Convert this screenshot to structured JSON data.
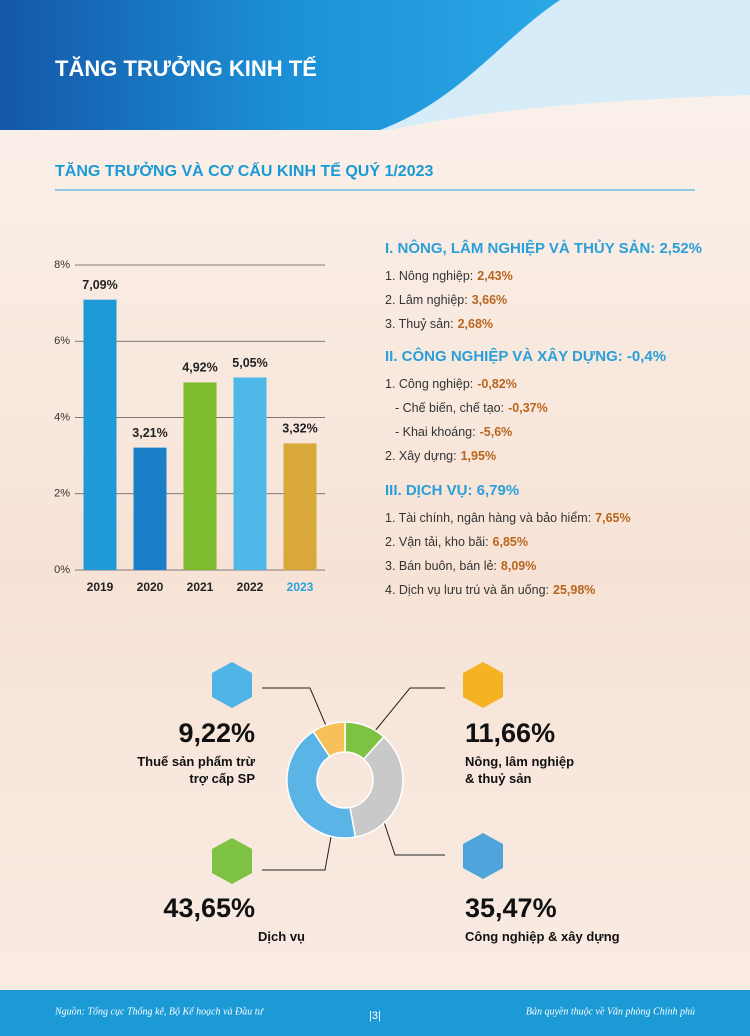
{
  "header": {
    "title": "TĂNG TRƯỞNG KINH TẾ"
  },
  "section_title": "TĂNG TRƯỞNG VÀ CƠ CẤU KINH TẾ QUÝ 1/2023",
  "chart_data": [
    {
      "type": "bar",
      "categories": [
        "2019",
        "2020",
        "2021",
        "2022",
        "2023"
      ],
      "values": [
        7.09,
        3.21,
        4.92,
        5.05,
        3.32
      ],
      "value_labels": [
        "7,09%",
        "3,21%",
        "4,92%",
        "5,05%",
        "3,32%"
      ],
      "colors": [
        "#1e9bd7",
        "#1a7fc8",
        "#7dbb2f",
        "#4fb8e8",
        "#d9a83a"
      ],
      "ylim": [
        0,
        8
      ],
      "yticks": [
        {
          "value": 0,
          "label": "0%"
        },
        {
          "value": 2,
          "label": "2%"
        },
        {
          "value": 4,
          "label": "4%"
        },
        {
          "value": 6,
          "label": "6%"
        },
        {
          "value": 8,
          "label": "8%"
        }
      ],
      "grid": true
    },
    {
      "type": "donut",
      "categories": [
        "Nông, lâm nghiệp & thuỷ sản",
        "Công nghiệp & xây dựng",
        "Dịch vụ",
        "Thuế sản phẩm trừ trợ cấp SP"
      ],
      "values": [
        11.66,
        35.47,
        43.65,
        9.22
      ],
      "value_labels": [
        "11,66%",
        "35,47%",
        "43,65%",
        "9,22%"
      ],
      "colors": [
        "#7dc242",
        "#c9c9c9",
        "#5ab4e5",
        "#f6c15a"
      ]
    }
  ],
  "sectors": [
    {
      "title": "I. NÔNG, LÂM NGHIỆP VÀ THỦY SẢN: 2,52%",
      "items": [
        {
          "text": "1.   Nông nghiệp:",
          "value": "2,43%"
        },
        {
          "text": "2.  Lâm nghiệp:",
          "value": "3,66%"
        },
        {
          "text": "3.  Thuỷ sản:",
          "value": "2,68%"
        }
      ]
    },
    {
      "title": "II. CÔNG NGHIỆP VÀ XÂY DỰNG: -0,4%",
      "items": [
        {
          "text": "1. Công nghiệp:",
          "value": "-0,82%"
        },
        {
          "text": "-   Chế biến, chế tạo:",
          "value": "-0,37%",
          "sub": true
        },
        {
          "text": "-   Khai khoáng:",
          "value": "-5,6%",
          "sub": true
        },
        {
          "text": "2. Xây dựng:",
          "value": "1,95%"
        }
      ]
    },
    {
      "title": "III. DỊCH VỤ: 6,79%",
      "items": [
        {
          "text": "1. Tài chính, ngân hàng và bảo hiểm:",
          "value": "7,65%"
        },
        {
          "text": "2. Vận tải, kho bãi:",
          "value": "6,85%"
        },
        {
          "text": "3. Bán buôn, bán lẻ:",
          "value": "8,09%"
        },
        {
          "text": "4. Dịch vụ lưu trú và ăn uống:",
          "value": "25,98%"
        }
      ]
    }
  ],
  "footer": {
    "source": "Nguồn: Tổng cục Thống kê, Bộ Kế hoạch và Đầu tư",
    "page": "|3|",
    "copyright": "Bản quyền thuộc về Văn phòng Chính phủ"
  }
}
